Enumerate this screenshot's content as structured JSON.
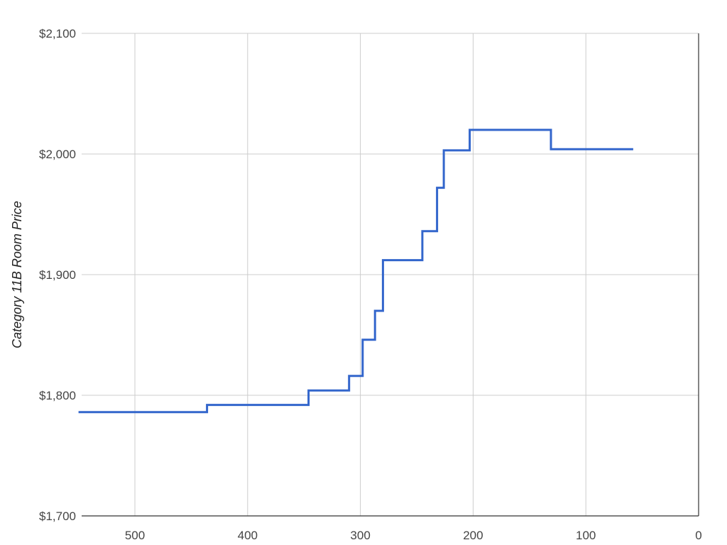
{
  "chart_data": {
    "type": "line",
    "title": "",
    "xlabel": "",
    "ylabel": "Category 11B Room Price",
    "xlim": [
      550,
      0
    ],
    "ylim": [
      1700,
      2100
    ],
    "x_reversed": true,
    "step": true,
    "grid": true,
    "x_ticks": [
      {
        "value": 500,
        "label": "500"
      },
      {
        "value": 400,
        "label": "400"
      },
      {
        "value": 300,
        "label": "300"
      },
      {
        "value": 200,
        "label": "200"
      },
      {
        "value": 100,
        "label": "100"
      },
      {
        "value": 0,
        "label": "0"
      }
    ],
    "y_ticks": [
      {
        "value": 1700,
        "label": "$1,700"
      },
      {
        "value": 1800,
        "label": "$1,800"
      },
      {
        "value": 1900,
        "label": "$1,900"
      },
      {
        "value": 2000,
        "label": "$2,000"
      },
      {
        "value": 2100,
        "label": "$2,100"
      }
    ],
    "series": [
      {
        "color": "#3366cc",
        "points": [
          {
            "x": 550,
            "y": 1786
          },
          {
            "x": 436,
            "y": 1786
          },
          {
            "x": 436,
            "y": 1792
          },
          {
            "x": 346,
            "y": 1792
          },
          {
            "x": 346,
            "y": 1804
          },
          {
            "x": 310,
            "y": 1804
          },
          {
            "x": 310,
            "y": 1816
          },
          {
            "x": 298,
            "y": 1816
          },
          {
            "x": 298,
            "y": 1846
          },
          {
            "x": 287,
            "y": 1846
          },
          {
            "x": 287,
            "y": 1870
          },
          {
            "x": 280,
            "y": 1870
          },
          {
            "x": 280,
            "y": 1912
          },
          {
            "x": 245,
            "y": 1912
          },
          {
            "x": 245,
            "y": 1936
          },
          {
            "x": 232,
            "y": 1936
          },
          {
            "x": 232,
            "y": 1972
          },
          {
            "x": 226,
            "y": 1972
          },
          {
            "x": 226,
            "y": 2003
          },
          {
            "x": 203,
            "y": 2003
          },
          {
            "x": 203,
            "y": 2020
          },
          {
            "x": 131,
            "y": 2020
          },
          {
            "x": 131,
            "y": 2004
          },
          {
            "x": 58,
            "y": 2004
          }
        ]
      }
    ]
  }
}
